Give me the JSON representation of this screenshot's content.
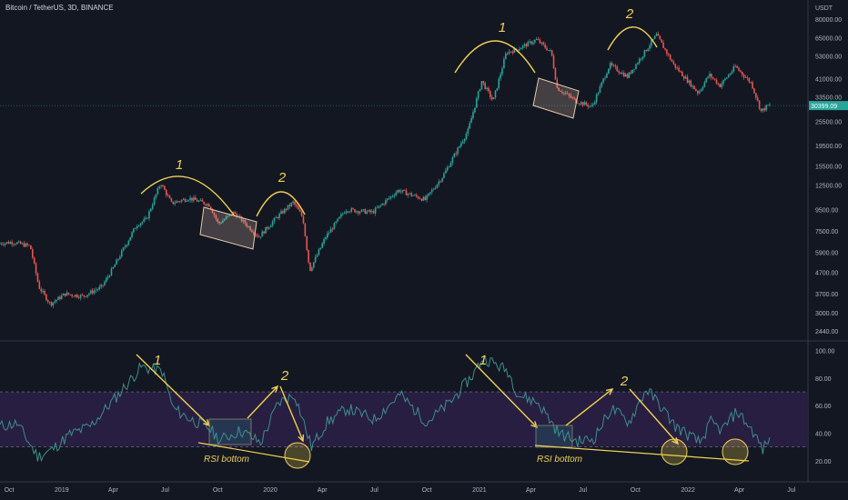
{
  "header": {
    "symbol_title": "Bitcoin / TetherUS, 3D, BINANCE",
    "currency": "USDT"
  },
  "colors": {
    "background": "#131722",
    "up": "#26a69a",
    "down": "#ef5350",
    "rsi_line": "#3d8f8a",
    "rsi_band": "#2a1f45",
    "annotation": "#f0d24a"
  },
  "chart_data": [
    {
      "type": "candlestick",
      "scale": "log",
      "price_axis": [
        "80000.00",
        "65000.00",
        "53000.00",
        "41000.00",
        "33500.00",
        "25500.00",
        "19500.00",
        "15500.00",
        "12500.00",
        "9500.00",
        "7500.00",
        "5900.00",
        "4700.00",
        "3700.00",
        "3000.00",
        "2440.00"
      ],
      "last_price_label": "30399.09",
      "last_price": 30399.09,
      "time_labels": [
        "Oct",
        "2019",
        "Apr",
        "Jul",
        "Oct",
        "2020",
        "Apr",
        "Jul",
        "Oct",
        "2021",
        "Apr",
        "Jul",
        "Oct",
        "2022",
        "Apr",
        "Jul"
      ],
      "price_path": [
        [
          "2018-09-15",
          6500
        ],
        [
          "2018-10-10",
          6600
        ],
        [
          "2018-11-10",
          6300
        ],
        [
          "2018-11-25",
          4000
        ],
        [
          "2018-12-15",
          3300
        ],
        [
          "2019-01-10",
          3700
        ],
        [
          "2019-02-10",
          3600
        ],
        [
          "2019-03-15",
          4000
        ],
        [
          "2019-04-05",
          5000
        ],
        [
          "2019-05-15",
          8000
        ],
        [
          "2019-06-01",
          8500
        ],
        [
          "2019-06-26",
          12800
        ],
        [
          "2019-07-15",
          10200
        ],
        [
          "2019-08-15",
          10800
        ],
        [
          "2019-09-20",
          10000
        ],
        [
          "2019-10-05",
          8100
        ],
        [
          "2019-11-01",
          9200
        ],
        [
          "2019-12-15",
          7000
        ],
        [
          "2020-01-15",
          8700
        ],
        [
          "2020-02-13",
          10300
        ],
        [
          "2020-03-01",
          8700
        ],
        [
          "2020-03-13",
          4800
        ],
        [
          "2020-04-10",
          7000
        ],
        [
          "2020-05-15",
          9500
        ],
        [
          "2020-07-01",
          9200
        ],
        [
          "2020-08-15",
          11800
        ],
        [
          "2020-10-01",
          10600
        ],
        [
          "2020-11-01",
          13800
        ],
        [
          "2020-12-15",
          23000
        ],
        [
          "2021-01-08",
          40000
        ],
        [
          "2021-01-28",
          32000
        ],
        [
          "2021-02-20",
          55000
        ],
        [
          "2021-03-10",
          57000
        ],
        [
          "2021-04-14",
          63500
        ],
        [
          "2021-05-10",
          55000
        ],
        [
          "2021-05-20",
          37000
        ],
        [
          "2021-06-22",
          32000
        ],
        [
          "2021-07-20",
          30000
        ],
        [
          "2021-08-20",
          48000
        ],
        [
          "2021-09-20",
          42000
        ],
        [
          "2021-11-10",
          67000
        ],
        [
          "2021-12-10",
          48000
        ],
        [
          "2022-01-22",
          35000
        ],
        [
          "2022-02-10",
          43000
        ],
        [
          "2022-03-01",
          38000
        ],
        [
          "2022-03-28",
          47000
        ],
        [
          "2022-04-25",
          39000
        ],
        [
          "2022-05-12",
          28500
        ],
        [
          "2022-05-24",
          30399.09
        ]
      ],
      "annotations": {
        "labels_1": [
          "1",
          "1"
        ],
        "labels_2": [
          "2",
          "2"
        ]
      }
    },
    {
      "type": "line",
      "indicator": "RSI",
      "rsi_axis": [
        "100.00",
        "80.00",
        "60.00",
        "40.00",
        "20.00"
      ],
      "upper_band": 70,
      "lower_band": 30,
      "rsi_path": [
        [
          "2018-09-15",
          45
        ],
        [
          "2018-10-15",
          47
        ],
        [
          "2018-11-20",
          23
        ],
        [
          "2018-12-15",
          28
        ],
        [
          "2019-01-15",
          39
        ],
        [
          "2019-02-20",
          45
        ],
        [
          "2019-04-10",
          68
        ],
        [
          "2019-05-20",
          88
        ],
        [
          "2019-06-26",
          85
        ],
        [
          "2019-07-15",
          58
        ],
        [
          "2019-08-15",
          50
        ],
        [
          "2019-09-15",
          44
        ],
        [
          "2019-10-05",
          35
        ],
        [
          "2019-11-10",
          42
        ],
        [
          "2019-12-15",
          33
        ],
        [
          "2020-01-15",
          62
        ],
        [
          "2020-02-13",
          68
        ],
        [
          "2020-03-13",
          30
        ],
        [
          "2020-04-10",
          48
        ],
        [
          "2020-05-15",
          58
        ],
        [
          "2020-07-01",
          50
        ],
        [
          "2020-08-15",
          68
        ],
        [
          "2020-10-01",
          48
        ],
        [
          "2020-11-10",
          62
        ],
        [
          "2020-12-20",
          82
        ],
        [
          "2021-01-08",
          95
        ],
        [
          "2021-02-20",
          85
        ],
        [
          "2021-03-10",
          68
        ],
        [
          "2021-04-14",
          62
        ],
        [
          "2021-05-20",
          40
        ],
        [
          "2021-06-22",
          34
        ],
        [
          "2021-07-20",
          36
        ],
        [
          "2021-08-20",
          58
        ],
        [
          "2021-09-20",
          48
        ],
        [
          "2021-10-20",
          72
        ],
        [
          "2021-11-10",
          62
        ],
        [
          "2021-12-10",
          45
        ],
        [
          "2022-01-22",
          33
        ],
        [
          "2022-02-10",
          48
        ],
        [
          "2022-03-01",
          42
        ],
        [
          "2022-03-28",
          56
        ],
        [
          "2022-04-25",
          41
        ],
        [
          "2022-05-12",
          28
        ],
        [
          "2022-05-24",
          37
        ]
      ],
      "annotations": {
        "labels_1": [
          "1",
          "1"
        ],
        "labels_2": [
          "2",
          "2"
        ],
        "rsi_bottom_labels": [
          "RSI bottom",
          "RSI bottom"
        ]
      }
    }
  ]
}
